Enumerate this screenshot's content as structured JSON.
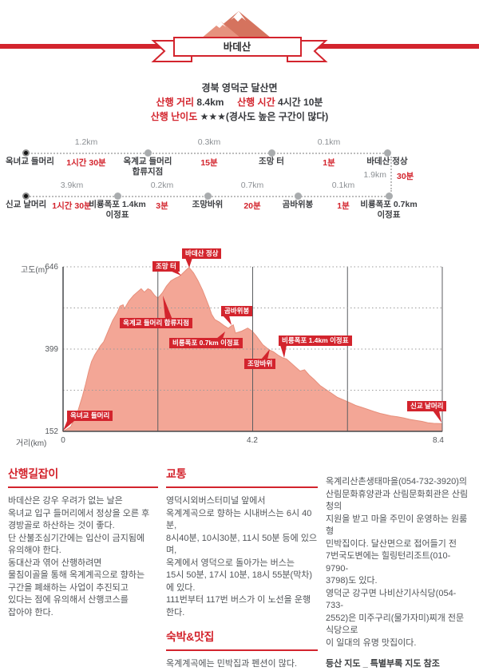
{
  "banner": {
    "title": "바데산"
  },
  "meta": {
    "region": "경북 영덕군 달산면",
    "distance_label": "산행 거리",
    "distance_value": "8.4km",
    "time_label": "산행 시간",
    "time_value": "4시간 10분",
    "difficulty_label": "산행 난이도",
    "difficulty_stars": "★★★",
    "difficulty_note": "(경사도 높은 구간이 많다)"
  },
  "route": {
    "row1": {
      "nodes": [
        {
          "label": "옥녀교 들머리"
        },
        {
          "label": "옥계교 들머리\n합류지점"
        },
        {
          "label": "조망 터"
        },
        {
          "label": "바데산 정상"
        }
      ],
      "segments": [
        {
          "distance": "1.2km",
          "time": "1시간 30분"
        },
        {
          "distance": "0.3km",
          "time": "15분"
        },
        {
          "distance": "0.1km",
          "time": "1분"
        }
      ]
    },
    "connector": {
      "distance": "1.9km",
      "time": "30분"
    },
    "row2": {
      "nodes": [
        {
          "label": "신교 날머리"
        },
        {
          "label": "비룡폭포 1.4km\n이정표"
        },
        {
          "label": "조망바위"
        },
        {
          "label": "곰바위봉"
        },
        {
          "label": "비룡폭포 0.7km\n이정표"
        }
      ],
      "segments": [
        {
          "distance": "3.9km",
          "time": "1시간 30분"
        },
        {
          "distance": "0.2km",
          "time": "3분"
        },
        {
          "distance": "0.7km",
          "time": "20분"
        },
        {
          "distance": "0.1km",
          "time": "1분"
        }
      ]
    }
  },
  "chart_data": {
    "type": "area",
    "xlabel": "거리(km)",
    "ylabel": "고도(m)",
    "xlim": [
      0,
      8.4
    ],
    "ylim": [
      152,
      646
    ],
    "xticks": [
      "0",
      "4.2",
      "8.4"
    ],
    "yticks": [
      "646",
      "399",
      "152"
    ],
    "x_gridlines": [
      2.1,
      4.2,
      6.3,
      8.4
    ],
    "y_gridlines": [
      646,
      522.5,
      399,
      275.5
    ],
    "grid": "on",
    "fill_color": "#f3a696",
    "accent_color": "#d3242d",
    "annotations": [
      {
        "label": "옥녀교 들머리",
        "km": 0,
        "m": 152
      },
      {
        "label": "옥계교 들머리 합류지점",
        "km": 2.2,
        "m": 560
      },
      {
        "label": "조망 터",
        "km": 2.5,
        "m": 618
      },
      {
        "label": "바데산 정상",
        "km": 2.8,
        "m": 646
      },
      {
        "label": "곰바위봉",
        "km": 3.77,
        "m": 473
      },
      {
        "label": "비룡폭포 0.7km 이정표",
        "km": 3.6,
        "m": 460
      },
      {
        "label": "비룡폭포 1.4km 이정표",
        "km": 4.9,
        "m": 378
      },
      {
        "label": "조망바위",
        "km": 4.65,
        "m": 397
      },
      {
        "label": "신교 날머리",
        "km": 8.4,
        "m": 175
      }
    ],
    "profile": [
      [
        0,
        152
      ],
      [
        0.17,
        166
      ],
      [
        0.33,
        214
      ],
      [
        0.43,
        258
      ],
      [
        0.5,
        294
      ],
      [
        0.57,
        333
      ],
      [
        0.63,
        361
      ],
      [
        0.7,
        381
      ],
      [
        0.83,
        409
      ],
      [
        0.9,
        421
      ],
      [
        1.0,
        453
      ],
      [
        1.1,
        485
      ],
      [
        1.2,
        508
      ],
      [
        1.26,
        528
      ],
      [
        1.33,
        532
      ],
      [
        1.36,
        520
      ],
      [
        1.46,
        544
      ],
      [
        1.56,
        560
      ],
      [
        1.66,
        572
      ],
      [
        1.73,
        580
      ],
      [
        1.8,
        570
      ],
      [
        1.88,
        580
      ],
      [
        1.94,
        576
      ],
      [
        2.03,
        560
      ],
      [
        2.1,
        552
      ],
      [
        2.2,
        568
      ],
      [
        2.29,
        588
      ],
      [
        2.39,
        604
      ],
      [
        2.49,
        612
      ],
      [
        2.56,
        616
      ],
      [
        2.63,
        624
      ],
      [
        2.73,
        637
      ],
      [
        2.79,
        644
      ],
      [
        2.89,
        628
      ],
      [
        2.99,
        604
      ],
      [
        3.09,
        576
      ],
      [
        3.16,
        552
      ],
      [
        3.23,
        528
      ],
      [
        3.29,
        504
      ],
      [
        3.36,
        488
      ],
      [
        3.46,
        480
      ],
      [
        3.56,
        470
      ],
      [
        3.66,
        461
      ],
      [
        3.72,
        468
      ],
      [
        3.77,
        472
      ],
      [
        3.82,
        447
      ],
      [
        3.96,
        453
      ],
      [
        4.09,
        462
      ],
      [
        4.19,
        453
      ],
      [
        4.29,
        437
      ],
      [
        4.42,
        413
      ],
      [
        4.56,
        397
      ],
      [
        4.66,
        391
      ],
      [
        4.76,
        381
      ],
      [
        4.86,
        373
      ],
      [
        4.95,
        369
      ],
      [
        5.05,
        357
      ],
      [
        5.15,
        345
      ],
      [
        5.25,
        333
      ],
      [
        5.35,
        337
      ],
      [
        5.45,
        321
      ],
      [
        5.55,
        309
      ],
      [
        5.69,
        290
      ],
      [
        5.82,
        278
      ],
      [
        5.95,
        266
      ],
      [
        6.08,
        254
      ],
      [
        6.22,
        246
      ],
      [
        6.35,
        238
      ],
      [
        6.48,
        230
      ],
      [
        6.62,
        224
      ],
      [
        6.75,
        218
      ],
      [
        6.88,
        212
      ],
      [
        7.02,
        206
      ],
      [
        7.15,
        202
      ],
      [
        7.28,
        198
      ],
      [
        7.41,
        196
      ],
      [
        7.55,
        192
      ],
      [
        7.68,
        188
      ],
      [
        7.81,
        185
      ],
      [
        7.95,
        182
      ],
      [
        8.08,
        178
      ],
      [
        8.21,
        176
      ],
      [
        8.4,
        175
      ]
    ]
  },
  "sections": {
    "guide": {
      "title": "산행길잡이",
      "body": "바데산은 강우 우려가 없는 날은\n옥녀교 입구 들머리에서 정상을 오른 후\n경방골로 하산하는 것이 좋다.\n단 산불조심기간에는 입산이 금지됨에\n유의해야 한다.\n동대산과 엮어 산행하려면\n물침이골을 통해 옥계계곡으로 향하는\n구간을 폐쇄하는 사업이 추진되고\n있다는 점에 유의해서 산행코스를\n잡아야 한다."
    },
    "transport": {
      "title": "교통",
      "body": "영덕시외버스터미널 앞에서\n옥계계곡으로 향하는 시내버스는 6시 40분,\n8시40분, 10시30분, 11시 50분 등에 있으며,\n옥계에서 영덕으로 돌아가는 버스는\n15시 50분, 17시 10분, 18시 55분(막차)에 있다.\n111번부터 117번 버스가 이 노선을 운행한다."
    },
    "lodging": {
      "title": "숙박&맛집",
      "body": "옥계계곡에는 민박집과 펜션이 많다.",
      "body2": "옥계리산촌생태마을(054-732-3920)의\n산림문화휴양관과 산림문화회관은 산림청의\n지원을 받고 마을 주민이 운영하는 원룸형\n민박집이다. 달산면으로 접어들기 전\n7번국도변에는 힐링턴리조트(010-9790-\n3798)도 있다.\n영덕군 강구면  나비산기사식당(054-733-\n2552)은 미주구리(물가자미)찌개 전문식당으로\n이 일대의 유명 맛집이다."
    },
    "map_note": "등산 지도 _ 특별부록 지도 참조"
  },
  "colors": {
    "accent": "#d3242d",
    "area_fill": "#f3a696",
    "muted_gray": "#8d9195"
  }
}
